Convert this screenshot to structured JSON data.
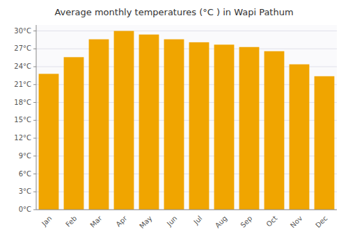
{
  "chart_data": {
    "type": "bar",
    "title": "Average monthly temperatures (°C ) in Wapi Pathum",
    "categories": [
      "Jan",
      "Feb",
      "Mar",
      "Apr",
      "May",
      "Jun",
      "Jul",
      "Aug",
      "Sep",
      "Oct",
      "Nov",
      "Dec"
    ],
    "values": [
      22.8,
      25.6,
      28.6,
      30.0,
      29.4,
      28.6,
      28.1,
      27.7,
      27.3,
      26.6,
      24.4,
      22.4
    ],
    "color": "#F0A500",
    "ylim": [
      0,
      31
    ],
    "yticks": [
      {
        "value": 0,
        "label": "0°C"
      },
      {
        "value": 3,
        "label": "3°C"
      },
      {
        "value": 6,
        "label": "6°C"
      },
      {
        "value": 9,
        "label": "9°C"
      },
      {
        "value": 12,
        "label": "12°C"
      },
      {
        "value": 15,
        "label": "15°C"
      },
      {
        "value": 18,
        "label": "18°C"
      },
      {
        "value": 21,
        "label": "21°C"
      },
      {
        "value": 24,
        "label": "24°C"
      },
      {
        "value": 27,
        "label": "27°C"
      },
      {
        "value": 30,
        "label": "30°C"
      }
    ],
    "grid": true
  }
}
